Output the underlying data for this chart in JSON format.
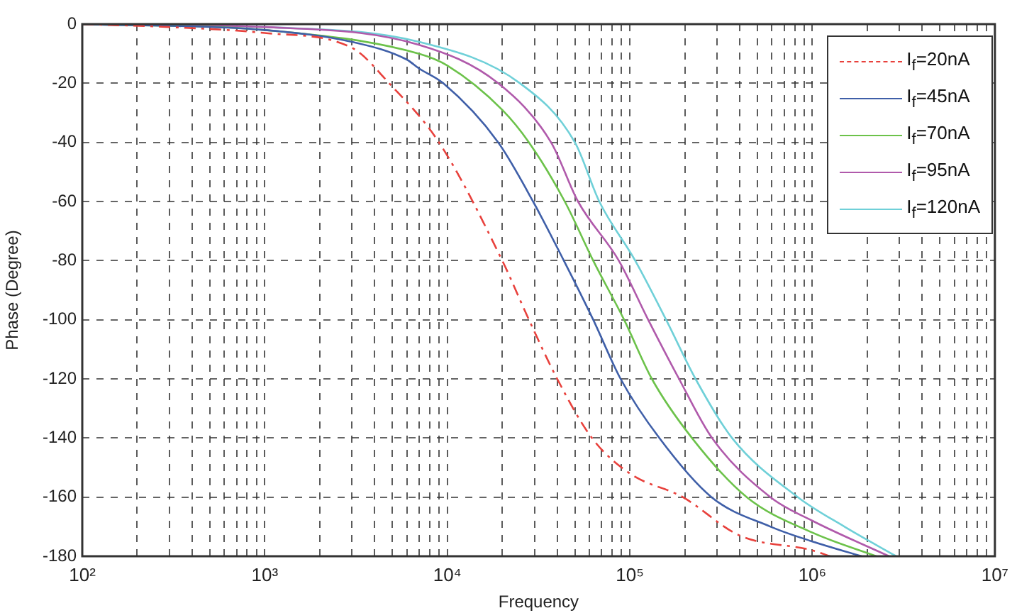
{
  "chart_data": {
    "type": "line",
    "xlabel": "Frequency",
    "ylabel": "Phase (Degree)",
    "log": "x",
    "grid": true,
    "legend": "top right",
    "marker": "none",
    "xlim": [
      100,
      10000000
    ],
    "xticks": [
      {
        "value": 100,
        "label": "10²"
      },
      {
        "value": 200,
        "label": null
      },
      {
        "value": 300,
        "label": null
      },
      {
        "value": 400,
        "label": null
      },
      {
        "value": 500,
        "label": null
      },
      {
        "value": 600,
        "label": null
      },
      {
        "value": 700,
        "label": null
      },
      {
        "value": 800,
        "label": null
      },
      {
        "value": 900,
        "label": null
      },
      {
        "value": 1000,
        "label": "10³"
      },
      {
        "value": 2000,
        "label": null
      },
      {
        "value": 3000,
        "label": null
      },
      {
        "value": 4000,
        "label": null
      },
      {
        "value": 5000,
        "label": null
      },
      {
        "value": 6000,
        "label": null
      },
      {
        "value": 7000,
        "label": null
      },
      {
        "value": 8000,
        "label": null
      },
      {
        "value": 9000,
        "label": null
      },
      {
        "value": 10000,
        "label": "10⁴"
      },
      {
        "value": 20000,
        "label": null
      },
      {
        "value": 30000,
        "label": null
      },
      {
        "value": 40000,
        "label": null
      },
      {
        "value": 50000,
        "label": null
      },
      {
        "value": 60000,
        "label": null
      },
      {
        "value": 70000,
        "label": null
      },
      {
        "value": 80000,
        "label": null
      },
      {
        "value": 90000,
        "label": null
      },
      {
        "value": 100000,
        "label": "10⁵"
      },
      {
        "value": 200000,
        "label": null
      },
      {
        "value": 300000,
        "label": null
      },
      {
        "value": 400000,
        "label": null
      },
      {
        "value": 500000,
        "label": null
      },
      {
        "value": 600000,
        "label": null
      },
      {
        "value": 700000,
        "label": null
      },
      {
        "value": 800000,
        "label": null
      },
      {
        "value": 900000,
        "label": null
      },
      {
        "value": 1000000,
        "label": "10⁶"
      },
      {
        "value": 2000000,
        "label": null
      },
      {
        "value": 3000000,
        "label": null
      },
      {
        "value": 4000000,
        "label": null
      },
      {
        "value": 5000000,
        "label": null
      },
      {
        "value": 6000000,
        "label": null
      },
      {
        "value": 7000000,
        "label": null
      },
      {
        "value": 8000000,
        "label": null
      },
      {
        "value": 9000000,
        "label": null
      },
      {
        "value": 10000000,
        "label": "10⁷"
      }
    ],
    "ylim": [
      -180,
      0
    ],
    "yticks": [
      -180,
      -160,
      -140,
      -120,
      -100,
      -80,
      -60,
      -40,
      -20,
      0
    ],
    "series": [
      {
        "name": "I$_{f}$=20nA",
        "color": "#e8413c",
        "line_style": "dashed",
        "x": [
          100,
          300,
          1000,
          3000,
          4800,
          9000,
          20000,
          28000,
          40000,
          62000,
          100000,
          195000,
          400000,
          1000000,
          1250000
        ],
        "values": [
          0,
          -1,
          -3,
          -8,
          -20,
          -40,
          -80,
          -100,
          -120,
          -140,
          -152,
          -160,
          -173,
          -178,
          -180
        ]
      },
      {
        "name": "I$_{f}$=45nA",
        "color": "#3f5fa8",
        "x": [
          100,
          1000,
          3000,
          6000,
          7000,
          9500,
          19000,
          29500,
          43500,
          63000,
          89000,
          145000,
          280000,
          590000,
          1000000,
          1860000
        ],
        "values": [
          0,
          -2,
          -6,
          -12,
          -15,
          -20,
          -40,
          -60,
          -80,
          -100,
          -120,
          -140,
          -160,
          -170,
          -175,
          -180
        ]
      },
      {
        "name": "I$_{f}$=70nA",
        "color": "#6cc24a",
        "x": [
          100,
          1000,
          7000,
          10000,
          20000,
          28000,
          44000,
          63000,
          93000,
          132000,
          219000,
          437000,
          1000000,
          2240000
        ],
        "values": [
          0,
          -2,
          -10,
          -14,
          -29,
          -40,
          -60,
          -80,
          -100,
          -120,
          -140,
          -160,
          -172,
          -180
        ]
      },
      {
        "name": "I$_{f}$=95nA",
        "color": "#b05aab",
        "x": [
          100,
          1000,
          7000,
          19000,
          37000,
          52000,
          87000,
          126000,
          186000,
          282000,
          589000,
          1000000,
          2630000
        ],
        "values": [
          0,
          -1,
          -7,
          -20,
          -40,
          -60,
          -80,
          -100,
          -120,
          -140,
          -160,
          -168,
          -180
        ]
      },
      {
        "name": "I$_{f}$=120nA",
        "color": "#6fd0d8",
        "x": [
          100,
          1000,
          7000,
          25000,
          50000,
          68000,
          107000,
          158000,
          229000,
          363000,
          832000,
          1500000,
          2880000
        ],
        "values": [
          0,
          -1,
          -6,
          -20,
          -40,
          -60,
          -80,
          -100,
          -120,
          -140,
          -160,
          -170,
          -180
        ]
      }
    ]
  }
}
